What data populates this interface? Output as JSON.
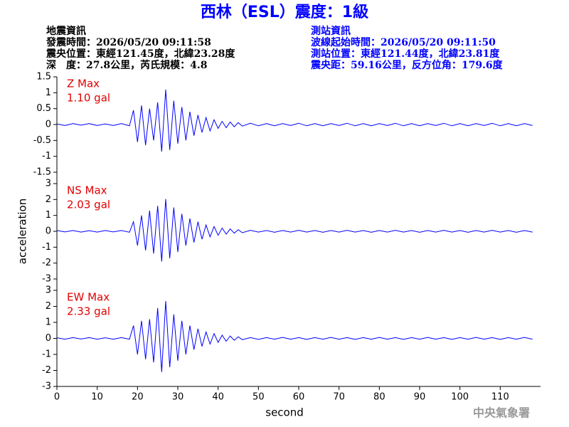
{
  "header": {
    "title": "西林（ESL）震度：1級",
    "left": [
      "地震資訊",
      "發震時間：2026/05/20 09:11:58",
      "震央位置：東經121.45度，北緯23.28度",
      "深　度：27.8公里，芮氏規模：4.8"
    ],
    "right": [
      "測站資訊",
      "波線起始時間：2026/05/20 09:11:50",
      "測站位置：東經121.44度，北緯23.81度",
      "震央距：59.16公里，反方位角：179.6度"
    ],
    "footer": "中央氣象署"
  },
  "chart_data": [
    {
      "type": "line",
      "annotations": [
        "Z Max",
        "1.10 gal"
      ],
      "color": "#0000ff",
      "xlim": [
        0,
        120
      ],
      "ylim": [
        -1.5,
        1.5
      ],
      "yticks": [
        1.5,
        1,
        0.5,
        0,
        -0.5,
        -1,
        -1.5
      ],
      "x": [
        0,
        2,
        4,
        6,
        8,
        10,
        12,
        14,
        16,
        18,
        19,
        20,
        21,
        22,
        23,
        24,
        25,
        26,
        27,
        28,
        29,
        30,
        31,
        32,
        33,
        34,
        35,
        36,
        37,
        38,
        39,
        40,
        41,
        42,
        43,
        44,
        45,
        46,
        48,
        50,
        52,
        54,
        56,
        58,
        60,
        62,
        64,
        66,
        68,
        70,
        72,
        74,
        76,
        78,
        80,
        82,
        84,
        86,
        88,
        90,
        92,
        94,
        96,
        98,
        100,
        102,
        104,
        106,
        108,
        110,
        112,
        114,
        116,
        118
      ],
      "values": [
        0.02,
        -0.03,
        0.03,
        -0.02,
        0.03,
        -0.03,
        0.02,
        -0.03,
        0.03,
        -0.04,
        0.45,
        -0.55,
        0.6,
        -0.65,
        0.5,
        -0.5,
        0.7,
        -0.85,
        1.1,
        -0.8,
        0.75,
        -0.6,
        0.55,
        -0.5,
        0.4,
        -0.35,
        0.3,
        -0.25,
        0.22,
        -0.2,
        0.15,
        -0.12,
        0.1,
        -0.1,
        0.08,
        -0.07,
        0.06,
        -0.05,
        0.04,
        -0.04,
        0.03,
        -0.04,
        0.03,
        -0.03,
        0.04,
        -0.04,
        0.03,
        -0.04,
        0.03,
        -0.03,
        0.04,
        -0.04,
        0.03,
        -0.04,
        0.03,
        -0.03,
        0.04,
        -0.04,
        0.03,
        -0.04,
        0.03,
        -0.03,
        0.04,
        -0.04,
        0.03,
        -0.04,
        0.03,
        -0.03,
        0.04,
        -0.04,
        0.03,
        -0.04,
        0.03,
        -0.03
      ]
    },
    {
      "type": "line",
      "annotations": [
        "NS Max",
        "2.03 gal"
      ],
      "ylabel": "acceleration",
      "color": "#0000ff",
      "xlim": [
        0,
        120
      ],
      "ylim": [
        -3,
        3
      ],
      "yticks": [
        3,
        2,
        1,
        0,
        -1,
        -2,
        -3
      ],
      "x": [
        0,
        2,
        4,
        6,
        8,
        10,
        12,
        14,
        16,
        18,
        19,
        20,
        21,
        22,
        23,
        24,
        25,
        26,
        27,
        28,
        29,
        30,
        31,
        32,
        33,
        34,
        35,
        36,
        37,
        38,
        39,
        40,
        41,
        42,
        43,
        44,
        45,
        46,
        48,
        50,
        52,
        54,
        56,
        58,
        60,
        62,
        64,
        66,
        68,
        70,
        72,
        74,
        76,
        78,
        80,
        82,
        84,
        86,
        88,
        90,
        92,
        94,
        96,
        98,
        100,
        102,
        104,
        106,
        108,
        110,
        112,
        114,
        116,
        118
      ],
      "values": [
        0.05,
        -0.04,
        0.05,
        -0.05,
        0.04,
        -0.05,
        0.05,
        -0.04,
        0.05,
        -0.06,
        0.6,
        -0.9,
        1.0,
        -1.2,
        1.3,
        -1.4,
        1.6,
        -1.9,
        2.03,
        -1.7,
        1.5,
        -1.3,
        1.1,
        -0.9,
        0.8,
        -0.7,
        0.6,
        -0.5,
        0.4,
        -0.35,
        0.3,
        -0.25,
        0.2,
        -0.18,
        0.15,
        -0.12,
        0.1,
        -0.09,
        0.06,
        -0.05,
        0.05,
        -0.06,
        0.05,
        -0.05,
        0.06,
        -0.05,
        0.05,
        -0.06,
        0.05,
        -0.05,
        0.06,
        -0.05,
        0.05,
        -0.06,
        0.05,
        -0.05,
        0.06,
        -0.05,
        0.05,
        -0.06,
        0.05,
        -0.05,
        0.06,
        -0.05,
        0.05,
        -0.06,
        0.05,
        -0.05,
        0.06,
        -0.05,
        0.05,
        -0.06,
        0.05,
        -0.05
      ]
    },
    {
      "type": "line",
      "annotations": [
        "EW Max",
        "2.33 gal"
      ],
      "xlabel": "second",
      "color": "#0000ff",
      "xlim": [
        0,
        120
      ],
      "ylim": [
        -3,
        3
      ],
      "yticks": [
        3,
        2,
        1,
        0,
        -1,
        -2,
        -3
      ],
      "xticks": [
        0,
        10,
        20,
        30,
        40,
        50,
        60,
        70,
        80,
        90,
        100,
        110
      ],
      "x": [
        0,
        2,
        4,
        6,
        8,
        10,
        12,
        14,
        16,
        18,
        19,
        20,
        21,
        22,
        23,
        24,
        25,
        26,
        27,
        28,
        29,
        30,
        31,
        32,
        33,
        34,
        35,
        36,
        37,
        38,
        39,
        40,
        41,
        42,
        43,
        44,
        45,
        46,
        48,
        50,
        52,
        54,
        56,
        58,
        60,
        62,
        64,
        66,
        68,
        70,
        72,
        74,
        76,
        78,
        80,
        82,
        84,
        86,
        88,
        90,
        92,
        94,
        96,
        98,
        100,
        102,
        104,
        106,
        108,
        110,
        112,
        114,
        116,
        118
      ],
      "values": [
        0.04,
        -0.05,
        0.05,
        -0.04,
        0.05,
        -0.05,
        0.04,
        -0.05,
        0.05,
        -0.05,
        0.8,
        -1.0,
        1.1,
        -1.3,
        1.2,
        -1.5,
        1.9,
        -2.1,
        2.33,
        -1.8,
        1.5,
        -1.4,
        1.1,
        -1.0,
        0.8,
        -0.7,
        0.6,
        -0.5,
        0.4,
        -0.35,
        0.3,
        -0.25,
        0.2,
        -0.18,
        0.15,
        -0.12,
        0.1,
        -0.08,
        0.05,
        -0.06,
        0.05,
        -0.05,
        0.06,
        -0.05,
        0.05,
        -0.06,
        0.05,
        -0.05,
        0.06,
        -0.05,
        0.05,
        -0.06,
        0.05,
        -0.05,
        0.06,
        -0.05,
        0.05,
        -0.06,
        0.05,
        -0.05,
        0.06,
        -0.05,
        0.05,
        -0.06,
        0.05,
        -0.05,
        0.06,
        -0.05,
        0.05,
        -0.06,
        0.05,
        -0.05,
        0.06,
        -0.05
      ]
    }
  ]
}
